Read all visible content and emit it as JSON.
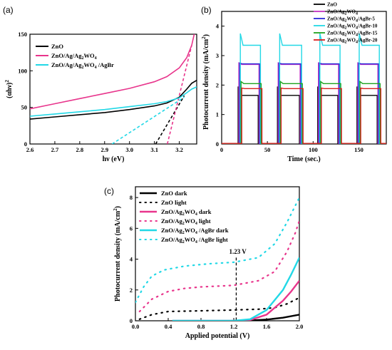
{
  "chart_data": [
    {
      "panel_label": "(a)",
      "type": "line",
      "xlabel": "hν (eV)",
      "ylabel": "(αhν)",
      "ylabel_sup": "2",
      "xlim": [
        2.6,
        3.27
      ],
      "ylim": [
        0,
        150
      ],
      "xticks": [
        "2.6",
        "2.7",
        "2.8",
        "2.9",
        "3.0",
        "3.1",
        "3.2"
      ],
      "yticks": [
        "0",
        "50",
        "100",
        "150"
      ],
      "legend_position": "top-left",
      "series": [
        {
          "name": "ZnO",
          "color": "#000000",
          "points": [
            [
              2.6,
              34
            ],
            [
              2.7,
              37
            ],
            [
              2.8,
              40
            ],
            [
              2.9,
              43
            ],
            [
              3.0,
              47
            ],
            [
              3.1,
              52
            ],
            [
              3.15,
              56
            ],
            [
              3.2,
              64
            ],
            [
              3.23,
              75
            ],
            [
              3.25,
              83
            ],
            [
              3.27,
              87
            ]
          ]
        },
        {
          "name": "ZnO/Ag/Ag2WO4",
          "name_parts": [
            "ZnO/Ag/Ag",
            "2",
            "WO",
            "4"
          ],
          "color": "#e8358c",
          "points": [
            [
              2.6,
              48
            ],
            [
              2.7,
              55
            ],
            [
              2.8,
              62
            ],
            [
              2.9,
              69
            ],
            [
              3.0,
              76
            ],
            [
              3.1,
              85
            ],
            [
              3.15,
              92
            ],
            [
              3.2,
              104
            ],
            [
              3.23,
              118
            ],
            [
              3.25,
              135
            ],
            [
              3.26,
              150
            ]
          ]
        },
        {
          "name": "ZnO/Ag/Ag2WO4 /AgBr",
          "name_parts": [
            "ZnO/Ag/Ag",
            "2",
            "WO",
            "4",
            " /AgBr"
          ],
          "color": "#22d8e6",
          "points": [
            [
              2.6,
              38
            ],
            [
              2.7,
              41
            ],
            [
              2.8,
              44
            ],
            [
              2.9,
              47
            ],
            [
              3.0,
              51
            ],
            [
              3.1,
              55
            ],
            [
              3.15,
              58
            ],
            [
              3.2,
              63
            ],
            [
              3.23,
              70
            ],
            [
              3.25,
              75
            ],
            [
              3.27,
              78
            ]
          ]
        }
      ],
      "tangents": [
        {
          "color": "#000000",
          "x0": 3.105,
          "y0": 0,
          "x1": 3.22,
          "y1": 66
        },
        {
          "color": "#e8358c",
          "x0": 3.152,
          "y0": 0,
          "x1": 3.25,
          "y1": 135
        },
        {
          "color": "#22d8e6",
          "x0": 2.93,
          "y0": 0,
          "x1": 3.22,
          "y1": 64
        }
      ]
    },
    {
      "panel_label": "(b)",
      "type": "line",
      "xlabel": "Time (sec.)",
      "ylabel": "Photocurrent density (mA/cm",
      "ylabel_sup": "2",
      "ylabel_end": ")",
      "xlim": [
        0,
        180
      ],
      "ylim": [
        0,
        4.5
      ],
      "xticks": [
        "0",
        "50",
        "100",
        "150"
      ],
      "yticks": [
        "0",
        "1",
        "2",
        "3",
        "4"
      ],
      "legend_position": "top-right",
      "light_on_off": [
        [
          20,
          42
        ],
        [
          63,
          87
        ],
        [
          107,
          129
        ],
        [
          150,
          172
        ]
      ],
      "series": [
        {
          "name": "ZnO",
          "name_parts": [
            "ZnO"
          ],
          "color": "#000000",
          "on": 1.65,
          "spike": 1.95
        },
        {
          "name": "ZnO/Ag2WO4",
          "name_parts": [
            "ZnO/Ag",
            "2",
            "WO",
            "4"
          ],
          "color": "#c838c8",
          "on": 2.7,
          "spike": 2.75
        },
        {
          "name": "ZnO/Ag2WO4/AgBr-5",
          "name_parts": [
            "ZnO/Ag",
            "2",
            "WO",
            "4",
            "/AgBr-5"
          ],
          "color": "#2a2ad8",
          "on": 2.72,
          "spike": 2.75
        },
        {
          "name": "ZnO/Ag2WO4/AgBr-10",
          "name_parts": [
            "ZnO/Ag",
            "2",
            "WO",
            "4",
            "/AgBr-10"
          ],
          "color": "#22d8e6",
          "on": 3.35,
          "spike": 3.75
        },
        {
          "name": "ZnO/Ag2WO4/AgBr-15",
          "name_parts": [
            "ZnO/Ag",
            "2",
            "WO",
            "4",
            "/AgBr-15"
          ],
          "color": "#1fa31f",
          "on": 2.05,
          "spike": 2.12
        },
        {
          "name": "ZnO/Ag2WO4/AgBr-20",
          "name_parts": [
            "ZnO/Ag",
            "2",
            "WO",
            "4",
            "/AgBr-20"
          ],
          "color": "#d81e1e",
          "on": 1.88,
          "spike": 1.9
        }
      ]
    },
    {
      "panel_label": "(c)",
      "type": "line",
      "xlabel": "Applied potential (V)",
      "ylabel": "Photocurrent density (mA/cm",
      "ylabel_sup": "2",
      "ylabel_end": ")",
      "xlim": [
        0,
        2.0
      ],
      "ylim": [
        0,
        8.7
      ],
      "xticks": [
        "0.0",
        "0.4",
        "0.8",
        "1.2",
        "1.6",
        "2.0"
      ],
      "yticks": [
        "0",
        "2",
        "4",
        "6",
        "8"
      ],
      "legend_position": "top-left",
      "annotation": {
        "text": "1.23 V",
        "x": 1.23
      },
      "series": [
        {
          "name": "ZnO dark",
          "name_parts": [
            "ZnO dark"
          ],
          "color": "#000000",
          "style": "solid",
          "points": [
            [
              1.2,
              0
            ],
            [
              1.4,
              0.02
            ],
            [
              1.6,
              0.08
            ],
            [
              1.8,
              0.2
            ],
            [
              2.0,
              0.4
            ]
          ]
        },
        {
          "name": "ZnO light",
          "name_parts": [
            "ZnO light"
          ],
          "color": "#000000",
          "style": "dotted",
          "points": [
            [
              0.05,
              0.1
            ],
            [
              0.2,
              0.4
            ],
            [
              0.4,
              0.6
            ],
            [
              0.8,
              0.65
            ],
            [
              1.2,
              0.7
            ],
            [
              1.5,
              0.75
            ],
            [
              1.7,
              0.85
            ],
            [
              1.85,
              1.1
            ],
            [
              2.0,
              1.5
            ]
          ]
        },
        {
          "name": "ZnO/Ag2WO4 dark",
          "name_parts": [
            "ZnO/Ag",
            "2",
            "WO",
            "4",
            " dark"
          ],
          "color": "#e8358c",
          "style": "solid",
          "points": [
            [
              0.45,
              0
            ],
            [
              1.2,
              0
            ],
            [
              1.4,
              0.05
            ],
            [
              1.6,
              0.4
            ],
            [
              1.8,
              1.3
            ],
            [
              1.9,
              1.9
            ],
            [
              2.0,
              2.6
            ]
          ]
        },
        {
          "name": "ZnO/Ag2WO4 light",
          "name_parts": [
            "ZnO/Ag",
            "2",
            "WO",
            "4",
            " light"
          ],
          "color": "#e8358c",
          "style": "dotted",
          "points": [
            [
              0.05,
              0.6
            ],
            [
              0.2,
              1.4
            ],
            [
              0.4,
              1.9
            ],
            [
              0.6,
              2.1
            ],
            [
              0.8,
              2.2
            ],
            [
              1.2,
              2.3
            ],
            [
              1.5,
              2.6
            ],
            [
              1.7,
              3.2
            ],
            [
              1.85,
              4.5
            ],
            [
              1.95,
              5.7
            ],
            [
              2.0,
              6.5
            ]
          ]
        },
        {
          "name": "ZnO/Ag2WO4 /AgBr dark",
          "name_parts": [
            "ZnO/Ag",
            "2",
            "WO",
            "4",
            " /AgBr dark"
          ],
          "color": "#22d8e6",
          "style": "solid",
          "points": [
            [
              0.45,
              0
            ],
            [
              1.2,
              0
            ],
            [
              1.4,
              0.1
            ],
            [
              1.6,
              0.7
            ],
            [
              1.8,
              2.0
            ],
            [
              1.9,
              3.0
            ],
            [
              2.0,
              4.1
            ]
          ]
        },
        {
          "name": "ZnO/Ag2WO4 /AgBr light",
          "name_parts": [
            "ZnO/Ag",
            "2",
            "WO",
            "4",
            " /AgBr light"
          ],
          "color": "#22d8e6",
          "style": "dotted",
          "points": [
            [
              0.0,
              1.2
            ],
            [
              0.1,
              2.2
            ],
            [
              0.2,
              2.9
            ],
            [
              0.35,
              3.3
            ],
            [
              0.6,
              3.55
            ],
            [
              0.9,
              3.7
            ],
            [
              1.2,
              3.8
            ],
            [
              1.5,
              4.1
            ],
            [
              1.7,
              5.0
            ],
            [
              1.85,
              6.4
            ],
            [
              2.0,
              8.0
            ]
          ]
        }
      ]
    }
  ]
}
